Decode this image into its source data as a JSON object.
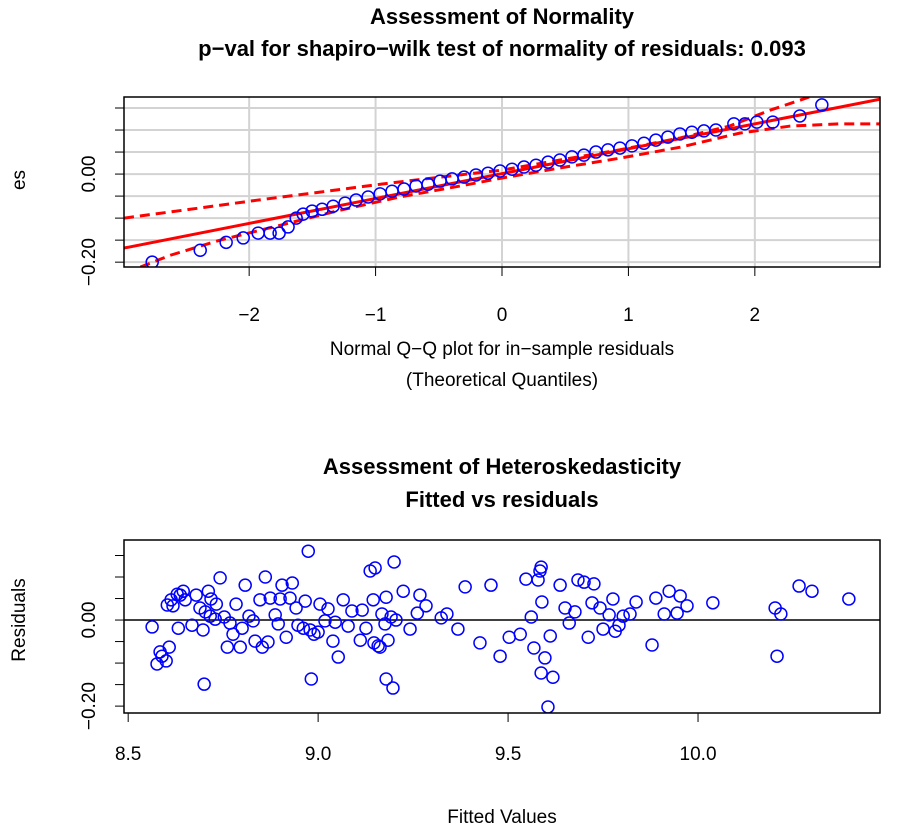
{
  "chart_data": [
    {
      "type": "qqplot",
      "title": "Assessment of Normality",
      "subtitle": "p−val for shapiro−wilk test of normality of residuals: 0.093",
      "xlabel": "Normal Q−Q plot for in−sample residuals",
      "xlabel2": "(Theoretical Quantiles)",
      "ylabel": "es",
      "grid": true,
      "xlim": [
        -2.99,
        2.99
      ],
      "ylim": [
        -0.211,
        0.175
      ],
      "xticks": [
        {
          "value": -2,
          "label": "−2"
        },
        {
          "value": -1,
          "label": "−1"
        },
        0,
        1,
        2
      ],
      "yticks": [
        {
          "value": -0.2,
          "label": "−0.20"
        },
        {
          "value": 0,
          "label": "0.00"
        }
      ],
      "yminorticks": [
        -0.15,
        -0.1,
        -0.05,
        0.05,
        0.1,
        0.15
      ],
      "point_color": "#0000ff",
      "line_color": "#ff0000",
      "x": [
        -2.767,
        -2.387,
        -2.182,
        -2.047,
        -1.929,
        -1.834,
        -1.763,
        -1.692,
        -1.628,
        -1.573,
        -1.502,
        -1.423,
        -1.336,
        -1.241,
        -1.154,
        -1.059,
        -0.964,
        -0.87,
        -0.775,
        -0.68,
        -0.585,
        -0.49,
        -0.395,
        -0.3,
        -0.206,
        -0.111,
        -0.016,
        0.079,
        0.174,
        0.269,
        0.364,
        0.458,
        0.553,
        0.648,
        0.743,
        0.838,
        0.933,
        1.028,
        1.123,
        1.217,
        1.312,
        1.407,
        1.502,
        1.597,
        1.692,
        1.834,
        1.921,
        2.016,
        2.142,
        2.356,
        2.53
      ],
      "y": [
        -0.2,
        -0.173,
        -0.155,
        -0.145,
        -0.134,
        -0.134,
        -0.134,
        -0.12,
        -0.1,
        -0.091,
        -0.084,
        -0.08,
        -0.073,
        -0.066,
        -0.059,
        -0.052,
        -0.045,
        -0.039,
        -0.034,
        -0.027,
        -0.023,
        -0.016,
        -0.011,
        -0.007,
        -0.002,
        0.002,
        0.007,
        0.011,
        0.016,
        0.02,
        0.027,
        0.032,
        0.039,
        0.043,
        0.05,
        0.055,
        0.059,
        0.064,
        0.07,
        0.077,
        0.084,
        0.091,
        0.095,
        0.098,
        0.1,
        0.114,
        0.114,
        0.118,
        0.118,
        0.132,
        0.157
      ],
      "qq_line": {
        "x": [
          -2.99,
          2.99
        ],
        "y": [
          -0.168,
          0.17
        ]
      },
      "upper_band": {
        "x": [
          -2.99,
          -2.39,
          -1.93,
          -1.44,
          -0.96,
          -0.49,
          0,
          0.46,
          0.93,
          1.41,
          1.8,
          2.12,
          2.36,
          2.43
        ],
        "y": [
          -0.1,
          -0.077,
          -0.059,
          -0.041,
          -0.023,
          -0.007,
          0.009,
          0.032,
          0.055,
          0.082,
          0.109,
          0.145,
          0.168,
          0.175
        ]
      },
      "lower_band": {
        "x": [
          -2.86,
          -2.62,
          -2.23,
          -1.75,
          -1.28,
          -0.81,
          -0.33,
          0,
          0.46,
          0.93,
          1.41,
          1.88,
          2.28,
          2.67,
          2.99
        ],
        "y": [
          -0.211,
          -0.184,
          -0.15,
          -0.116,
          -0.082,
          -0.052,
          -0.027,
          -0.009,
          0.014,
          0.036,
          0.061,
          0.093,
          0.109,
          0.114,
          0.114
        ]
      }
    },
    {
      "type": "scatter",
      "title": "Assessment of Heteroskedasticity",
      "subtitle": "Fitted vs residuals",
      "xlabel": "Fitted Values",
      "ylabel": "Residuals",
      "grid": false,
      "hline": 0,
      "xlim": [
        8.489,
        10.479
      ],
      "ylim": [
        -0.216,
        0.186
      ],
      "xticks": [
        8.5,
        {
          "value": 9,
          "label": "9.0"
        },
        9.5,
        {
          "value": 10,
          "label": "10.0"
        }
      ],
      "yticks": [
        {
          "value": -0.2,
          "label": "−0.20"
        },
        {
          "value": 0,
          "label": "0.00"
        }
      ],
      "yminorticks": [
        -0.15,
        -0.1,
        -0.05,
        0.05,
        0.1,
        0.15
      ],
      "point_color": "#0000ff",
      "line_color": "#000000",
      "x": [
        8.563,
        8.576,
        8.584,
        8.589,
        8.6,
        8.603,
        8.608,
        8.613,
        8.618,
        8.629,
        8.632,
        8.637,
        8.645,
        8.65,
        8.668,
        8.679,
        8.689,
        8.697,
        8.7,
        8.703,
        8.711,
        8.716,
        8.718,
        8.729,
        8.732,
        8.742,
        8.753,
        8.761,
        8.768,
        8.776,
        8.784,
        8.795,
        8.8,
        8.808,
        8.818,
        8.829,
        8.834,
        8.847,
        8.853,
        8.861,
        8.868,
        8.874,
        8.887,
        8.895,
        8.9,
        8.905,
        8.916,
        8.926,
        8.932,
        8.942,
        8.947,
        8.961,
        8.966,
        8.974,
        8.979,
        8.982,
        8.989,
        9.0,
        9.005,
        9.018,
        9.026,
        9.039,
        9.045,
        9.053,
        9.066,
        9.079,
        9.089,
        9.111,
        9.116,
        9.126,
        9.137,
        9.145,
        9.147,
        9.15,
        9.158,
        9.163,
        9.168,
        9.176,
        9.179,
        9.179,
        9.184,
        9.192,
        9.197,
        9.2,
        9.205,
        9.224,
        9.242,
        9.261,
        9.268,
        9.284,
        9.324,
        9.339,
        9.368,
        9.387,
        9.426,
        9.455,
        9.479,
        9.503,
        9.532,
        9.547,
        9.561,
        9.568,
        9.579,
        9.584,
        9.587,
        9.589,
        9.597,
        9.605,
        9.587,
        9.611,
        9.618,
        9.637,
        9.65,
        9.661,
        9.676,
        9.684,
        9.7,
        9.711,
        9.721,
        9.726,
        9.742,
        9.75,
        9.766,
        9.776,
        9.782,
        9.792,
        9.803,
        9.821,
        9.837,
        9.879,
        9.889,
        9.911,
        9.924,
        9.945,
        9.953,
        9.971,
        10.039,
        10.203,
        10.208,
        10.218,
        10.266,
        10.3,
        10.397
      ],
      "y": [
        -0.016,
        -0.102,
        -0.074,
        -0.084,
        -0.095,
        0.035,
        -0.063,
        0.047,
        0.033,
        0.06,
        -0.019,
        0.058,
        0.067,
        0.047,
        -0.012,
        0.058,
        0.028,
        -0.023,
        -0.149,
        0.019,
        0.067,
        0.009,
        0.049,
        0.002,
        0.037,
        0.098,
        0.007,
        -0.063,
        -0.007,
        -0.033,
        0.037,
        -0.063,
        -0.019,
        0.081,
        0.009,
        -0.002,
        -0.049,
        0.047,
        -0.063,
        0.1,
        -0.051,
        0.051,
        0.012,
        -0.009,
        0.049,
        0.081,
        -0.04,
        0.051,
        0.086,
        0.028,
        -0.012,
        -0.019,
        0.044,
        0.16,
        -0.023,
        -0.137,
        -0.033,
        -0.028,
        0.037,
        -0.002,
        0.026,
        -0.049,
        -0.005,
        -0.086,
        0.047,
        -0.014,
        0.021,
        -0.047,
        0.023,
        -0.019,
        0.114,
        0.047,
        -0.053,
        0.121,
        -0.06,
        -0.063,
        0.014,
        -0.009,
        0.053,
        -0.137,
        -0.047,
        0.007,
        -0.158,
        0.135,
        0.0,
        0.067,
        -0.021,
        0.016,
        0.058,
        0.033,
        0.005,
        0.014,
        -0.021,
        0.077,
        -0.053,
        0.081,
        -0.084,
        -0.04,
        -0.033,
        0.095,
        0.007,
        -0.065,
        0.093,
        0.114,
        0.123,
        0.042,
        -0.088,
        -0.202,
        -0.123,
        -0.037,
        -0.133,
        0.081,
        0.028,
        -0.007,
        0.019,
        0.093,
        0.088,
        -0.04,
        0.04,
        0.084,
        0.028,
        -0.021,
        0.012,
        0.049,
        -0.026,
        -0.012,
        0.009,
        0.014,
        0.042,
        -0.058,
        0.051,
        0.014,
        0.067,
        0.016,
        0.056,
        0.033,
        0.04,
        0.028,
        -0.084,
        0.014,
        0.079,
        0.067,
        0.049
      ]
    }
  ]
}
